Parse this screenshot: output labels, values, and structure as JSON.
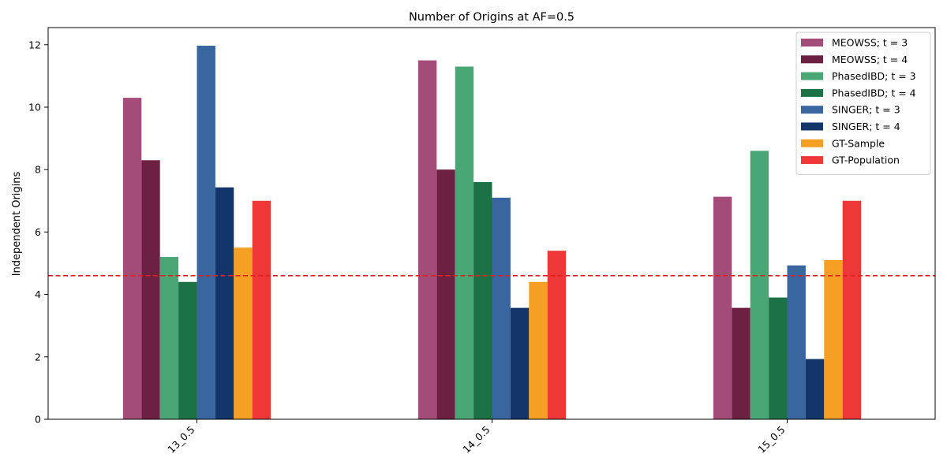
{
  "chart_data": {
    "type": "bar",
    "title": "Number of Origins at AF=0.5",
    "xlabel": "",
    "ylabel": "Independent Origins",
    "categories": [
      "13_0.5",
      "14_0.5",
      "15_0.5"
    ],
    "ylim": [
      0,
      12.55
    ],
    "yticks": [
      0,
      2,
      4,
      6,
      8,
      10,
      12
    ],
    "grid": false,
    "legend_position": "top-right",
    "series": [
      {
        "name": "MEOWSS; t = 3",
        "color": "#a34c78",
        "values": [
          10.3,
          11.5,
          7.13
        ]
      },
      {
        "name": "MEOWSS; t = 4",
        "color": "#6e2043",
        "values": [
          8.3,
          8.0,
          3.57
        ]
      },
      {
        "name": "PhasedIBD; t = 3",
        "color": "#48a774",
        "values": [
          5.2,
          11.3,
          8.6
        ]
      },
      {
        "name": "PhasedIBD; t = 4",
        "color": "#1d7245",
        "values": [
          4.4,
          7.6,
          3.9
        ]
      },
      {
        "name": "SINGER; t = 3",
        "color": "#3a66a0",
        "values": [
          11.97,
          7.1,
          4.93
        ]
      },
      {
        "name": "SINGER; t = 4",
        "color": "#13356a",
        "values": [
          7.43,
          3.57,
          1.93
        ]
      },
      {
        "name": "GT-Sample",
        "color": "#f5a024",
        "values": [
          5.5,
          4.4,
          5.1
        ]
      },
      {
        "name": "GT-Population",
        "color": "#ee3838",
        "values": [
          7.0,
          5.4,
          7.0
        ]
      }
    ],
    "reference_line": {
      "y": 4.6,
      "color": "#e02020",
      "style": "dashed"
    }
  }
}
